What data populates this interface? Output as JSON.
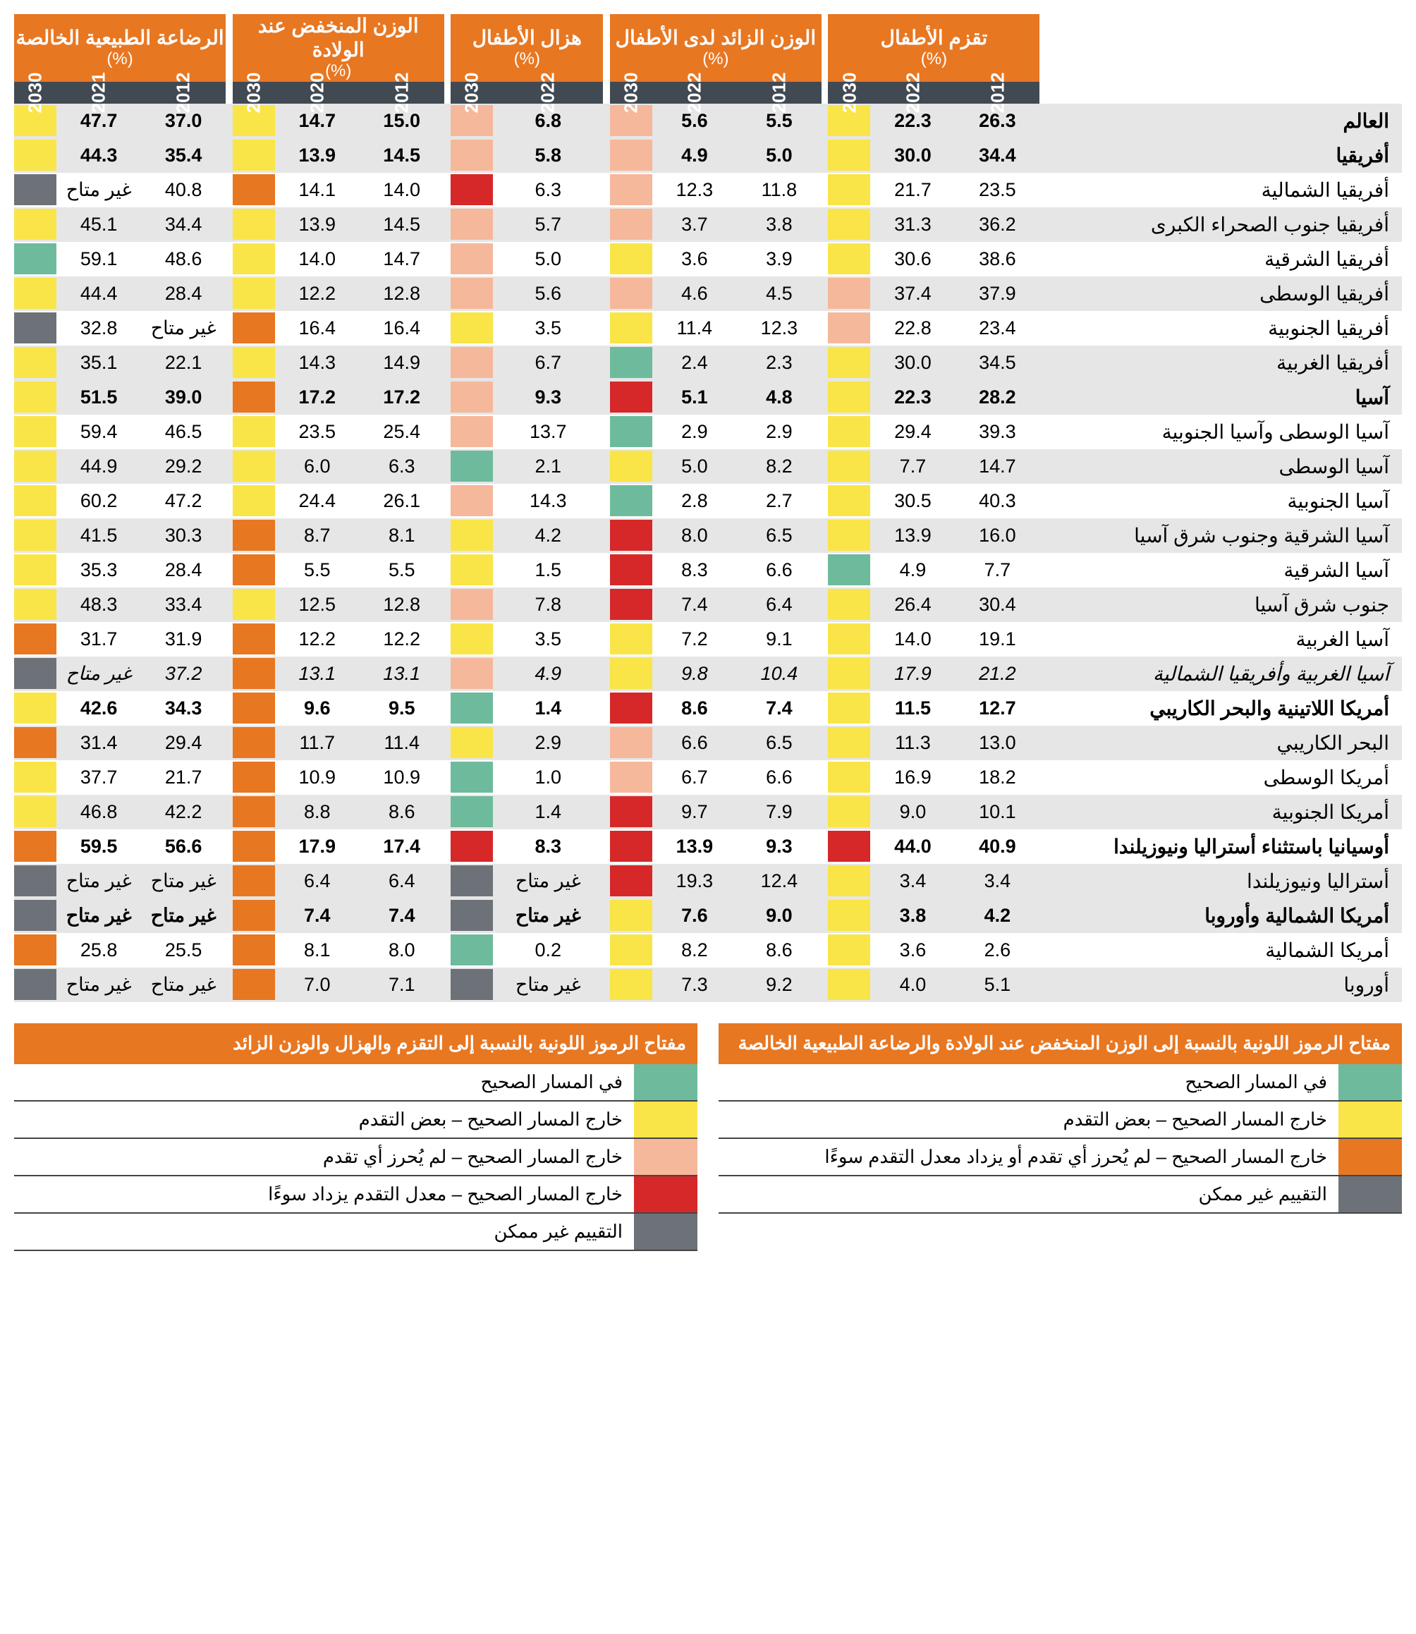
{
  "colors": {
    "orange": "#e87722",
    "darkgrey": "#414a53",
    "green": "#6dbb9c",
    "yellow": "#f9e547",
    "red": "#d62828",
    "pink": "#f5b89b",
    "grey": "#6d7278",
    "altrow": "#e6e6e6"
  },
  "na_text": "غير متاح",
  "groups": [
    {
      "title": "تقزم الأطفال",
      "pct": "(%)",
      "years": [
        "2012",
        "2022",
        "2030"
      ]
    },
    {
      "title": "الوزن الزائد لدى الأطفال",
      "pct": "(%)",
      "years": [
        "2012",
        "2022",
        "2030"
      ]
    },
    {
      "title": "هزال الأطفال",
      "pct": "(%)",
      "years": [
        "2012",
        "2022",
        "2030"
      ]
    },
    {
      "title": "الوزن المنخفض عند الولادة",
      "pct": "(%)",
      "years": [
        "2012",
        "2020",
        "2030"
      ]
    },
    {
      "title": "الرضاعة الطبيعية الخالصة",
      "pct": "(%)",
      "years": [
        "2012",
        "2021",
        "2030"
      ]
    }
  ],
  "rows": [
    {
      "name": "العالم",
      "bold": true,
      "alt": true,
      "stunting": {
        "v": [
          "26.3",
          "22.3"
        ],
        "c": "yellow"
      },
      "overweight": {
        "v": [
          "5.5",
          "5.6"
        ],
        "c": "pink"
      },
      "wasting": {
        "v": [
          "6.8"
        ],
        "c": "pink"
      },
      "lbw": {
        "v": [
          "15.0",
          "14.7"
        ],
        "c": "yellow"
      },
      "bf": {
        "v": [
          "37.0",
          "47.7"
        ],
        "c": "yellow"
      }
    },
    {
      "name": "أفريقيا",
      "bold": true,
      "alt": true,
      "stunting": {
        "v": [
          "34.4",
          "30.0"
        ],
        "c": "yellow"
      },
      "overweight": {
        "v": [
          "5.0",
          "4.9"
        ],
        "c": "pink"
      },
      "wasting": {
        "v": [
          "5.8"
        ],
        "c": "pink"
      },
      "lbw": {
        "v": [
          "14.5",
          "13.9"
        ],
        "c": "yellow"
      },
      "bf": {
        "v": [
          "35.4",
          "44.3"
        ],
        "c": "yellow"
      }
    },
    {
      "name": "أفريقيا الشمالية",
      "stunting": {
        "v": [
          "23.5",
          "21.7"
        ],
        "c": "yellow"
      },
      "overweight": {
        "v": [
          "11.8",
          "12.3"
        ],
        "c": "pink"
      },
      "wasting": {
        "v": [
          "6.3"
        ],
        "c": "red"
      },
      "lbw": {
        "v": [
          "14.0",
          "14.1"
        ],
        "c": "orange"
      },
      "bf": {
        "v": [
          "40.8",
          "غير متاح"
        ],
        "c": "grey"
      }
    },
    {
      "name": "أفريقيا جنوب الصحراء الكبرى",
      "alt": true,
      "stunting": {
        "v": [
          "36.2",
          "31.3"
        ],
        "c": "yellow"
      },
      "overweight": {
        "v": [
          "3.8",
          "3.7"
        ],
        "c": "pink"
      },
      "wasting": {
        "v": [
          "5.7"
        ],
        "c": "pink"
      },
      "lbw": {
        "v": [
          "14.5",
          "13.9"
        ],
        "c": "yellow"
      },
      "bf": {
        "v": [
          "34.4",
          "45.1"
        ],
        "c": "yellow"
      }
    },
    {
      "name": "أفريقيا الشرقية",
      "stunting": {
        "v": [
          "38.6",
          "30.6"
        ],
        "c": "yellow"
      },
      "overweight": {
        "v": [
          "3.9",
          "3.6"
        ],
        "c": "yellow"
      },
      "wasting": {
        "v": [
          "5.0"
        ],
        "c": "pink"
      },
      "lbw": {
        "v": [
          "14.7",
          "14.0"
        ],
        "c": "yellow"
      },
      "bf": {
        "v": [
          "48.6",
          "59.1"
        ],
        "c": "green"
      }
    },
    {
      "name": "أفريقيا الوسطى",
      "alt": true,
      "stunting": {
        "v": [
          "37.9",
          "37.4"
        ],
        "c": "pink"
      },
      "overweight": {
        "v": [
          "4.5",
          "4.6"
        ],
        "c": "pink"
      },
      "wasting": {
        "v": [
          "5.6"
        ],
        "c": "pink"
      },
      "lbw": {
        "v": [
          "12.8",
          "12.2"
        ],
        "c": "yellow"
      },
      "bf": {
        "v": [
          "28.4",
          "44.4"
        ],
        "c": "yellow"
      }
    },
    {
      "name": "أفريقيا الجنوبية",
      "stunting": {
        "v": [
          "23.4",
          "22.8"
        ],
        "c": "pink"
      },
      "overweight": {
        "v": [
          "12.3",
          "11.4"
        ],
        "c": "yellow"
      },
      "wasting": {
        "v": [
          "3.5"
        ],
        "c": "yellow"
      },
      "lbw": {
        "v": [
          "16.4",
          "16.4"
        ],
        "c": "orange"
      },
      "bf": {
        "v": [
          "غير متاح",
          "32.8"
        ],
        "c": "grey"
      }
    },
    {
      "name": "أفريقيا الغربية",
      "alt": true,
      "stunting": {
        "v": [
          "34.5",
          "30.0"
        ],
        "c": "yellow"
      },
      "overweight": {
        "v": [
          "2.3",
          "2.4"
        ],
        "c": "green"
      },
      "wasting": {
        "v": [
          "6.7"
        ],
        "c": "pink"
      },
      "lbw": {
        "v": [
          "14.9",
          "14.3"
        ],
        "c": "yellow"
      },
      "bf": {
        "v": [
          "22.1",
          "35.1"
        ],
        "c": "yellow"
      }
    },
    {
      "name": "آسيا",
      "bold": true,
      "alt": true,
      "stunting": {
        "v": [
          "28.2",
          "22.3"
        ],
        "c": "yellow"
      },
      "overweight": {
        "v": [
          "4.8",
          "5.1"
        ],
        "c": "red"
      },
      "wasting": {
        "v": [
          "9.3"
        ],
        "c": "pink"
      },
      "lbw": {
        "v": [
          "17.2",
          "17.2"
        ],
        "c": "orange"
      },
      "bf": {
        "v": [
          "39.0",
          "51.5"
        ],
        "c": "yellow"
      }
    },
    {
      "name": "آسيا الوسطى وآسيا الجنوبية",
      "stunting": {
        "v": [
          "39.3",
          "29.4"
        ],
        "c": "yellow"
      },
      "overweight": {
        "v": [
          "2.9",
          "2.9"
        ],
        "c": "green"
      },
      "wasting": {
        "v": [
          "13.7"
        ],
        "c": "pink"
      },
      "lbw": {
        "v": [
          "25.4",
          "23.5"
        ],
        "c": "yellow"
      },
      "bf": {
        "v": [
          "46.5",
          "59.4"
        ],
        "c": "yellow"
      }
    },
    {
      "name": "آسيا الوسطى",
      "alt": true,
      "stunting": {
        "v": [
          "14.7",
          "7.7"
        ],
        "c": "yellow"
      },
      "overweight": {
        "v": [
          "8.2",
          "5.0"
        ],
        "c": "yellow"
      },
      "wasting": {
        "v": [
          "2.1"
        ],
        "c": "green"
      },
      "lbw": {
        "v": [
          "6.3",
          "6.0"
        ],
        "c": "yellow"
      },
      "bf": {
        "v": [
          "29.2",
          "44.9"
        ],
        "c": "yellow"
      }
    },
    {
      "name": "آسيا الجنوبية",
      "stunting": {
        "v": [
          "40.3",
          "30.5"
        ],
        "c": "yellow"
      },
      "overweight": {
        "v": [
          "2.7",
          "2.8"
        ],
        "c": "green"
      },
      "wasting": {
        "v": [
          "14.3"
        ],
        "c": "pink"
      },
      "lbw": {
        "v": [
          "26.1",
          "24.4"
        ],
        "c": "yellow"
      },
      "bf": {
        "v": [
          "47.2",
          "60.2"
        ],
        "c": "yellow"
      }
    },
    {
      "name": "آسيا الشرقية وجنوب شرق آسيا",
      "alt": true,
      "stunting": {
        "v": [
          "16.0",
          "13.9"
        ],
        "c": "yellow"
      },
      "overweight": {
        "v": [
          "6.5",
          "8.0"
        ],
        "c": "red"
      },
      "wasting": {
        "v": [
          "4.2"
        ],
        "c": "yellow"
      },
      "lbw": {
        "v": [
          "8.1",
          "8.7"
        ],
        "c": "orange"
      },
      "bf": {
        "v": [
          "30.3",
          "41.5"
        ],
        "c": "yellow"
      }
    },
    {
      "name": "آسيا الشرقية",
      "stunting": {
        "v": [
          "7.7",
          "4.9"
        ],
        "c": "green"
      },
      "overweight": {
        "v": [
          "6.6",
          "8.3"
        ],
        "c": "red"
      },
      "wasting": {
        "v": [
          "1.5"
        ],
        "c": "yellow"
      },
      "lbw": {
        "v": [
          "5.5",
          "5.5"
        ],
        "c": "orange"
      },
      "bf": {
        "v": [
          "28.4",
          "35.3"
        ],
        "c": "yellow"
      }
    },
    {
      "name": "جنوب شرق آسيا",
      "alt": true,
      "stunting": {
        "v": [
          "30.4",
          "26.4"
        ],
        "c": "yellow"
      },
      "overweight": {
        "v": [
          "6.4",
          "7.4"
        ],
        "c": "red"
      },
      "wasting": {
        "v": [
          "7.8"
        ],
        "c": "pink"
      },
      "lbw": {
        "v": [
          "12.8",
          "12.5"
        ],
        "c": "yellow"
      },
      "bf": {
        "v": [
          "33.4",
          "48.3"
        ],
        "c": "yellow"
      }
    },
    {
      "name": "آسيا الغربية",
      "stunting": {
        "v": [
          "19.1",
          "14.0"
        ],
        "c": "yellow"
      },
      "overweight": {
        "v": [
          "9.1",
          "7.2"
        ],
        "c": "yellow"
      },
      "wasting": {
        "v": [
          "3.5"
        ],
        "c": "yellow"
      },
      "lbw": {
        "v": [
          "12.2",
          "12.2"
        ],
        "c": "orange"
      },
      "bf": {
        "v": [
          "31.9",
          "31.7"
        ],
        "c": "orange"
      }
    },
    {
      "name": "آسيا الغربية وأفريقيا الشمالية",
      "alt": true,
      "ital": true,
      "stunting": {
        "v": [
          "21.2",
          "17.9"
        ],
        "c": "yellow"
      },
      "overweight": {
        "v": [
          "10.4",
          "9.8"
        ],
        "c": "yellow"
      },
      "wasting": {
        "v": [
          "4.9"
        ],
        "c": "pink"
      },
      "lbw": {
        "v": [
          "13.1",
          "13.1"
        ],
        "c": "orange"
      },
      "bf": {
        "v": [
          "37.2",
          "غير متاح"
        ],
        "c": "grey"
      }
    },
    {
      "name": "أمريكا اللاتينية والبحر الكاريبي",
      "bold": true,
      "stunting": {
        "v": [
          "12.7",
          "11.5"
        ],
        "c": "yellow"
      },
      "overweight": {
        "v": [
          "7.4",
          "8.6"
        ],
        "c": "red"
      },
      "wasting": {
        "v": [
          "1.4"
        ],
        "c": "green"
      },
      "lbw": {
        "v": [
          "9.5",
          "9.6"
        ],
        "c": "orange"
      },
      "bf": {
        "v": [
          "34.3",
          "42.6"
        ],
        "c": "yellow"
      }
    },
    {
      "name": "البحر الكاريبي",
      "alt": true,
      "stunting": {
        "v": [
          "13.0",
          "11.3"
        ],
        "c": "yellow"
      },
      "overweight": {
        "v": [
          "6.5",
          "6.6"
        ],
        "c": "pink"
      },
      "wasting": {
        "v": [
          "2.9"
        ],
        "c": "yellow"
      },
      "lbw": {
        "v": [
          "11.4",
          "11.7"
        ],
        "c": "orange"
      },
      "bf": {
        "v": [
          "29.4",
          "31.4"
        ],
        "c": "orange"
      }
    },
    {
      "name": "أمريكا الوسطى",
      "stunting": {
        "v": [
          "18.2",
          "16.9"
        ],
        "c": "yellow"
      },
      "overweight": {
        "v": [
          "6.6",
          "6.7"
        ],
        "c": "pink"
      },
      "wasting": {
        "v": [
          "1.0"
        ],
        "c": "green"
      },
      "lbw": {
        "v": [
          "10.9",
          "10.9"
        ],
        "c": "orange"
      },
      "bf": {
        "v": [
          "21.7",
          "37.7"
        ],
        "c": "yellow"
      }
    },
    {
      "name": "أمريكا الجنوبية",
      "alt": true,
      "stunting": {
        "v": [
          "10.1",
          "9.0"
        ],
        "c": "yellow"
      },
      "overweight": {
        "v": [
          "7.9",
          "9.7"
        ],
        "c": "red"
      },
      "wasting": {
        "v": [
          "1.4"
        ],
        "c": "green"
      },
      "lbw": {
        "v": [
          "8.6",
          "8.8"
        ],
        "c": "orange"
      },
      "bf": {
        "v": [
          "42.2",
          "46.8"
        ],
        "c": "yellow"
      }
    },
    {
      "name": "أوسيانيا باستثناء أستراليا ونيوزيلندا",
      "bold": true,
      "stunting": {
        "v": [
          "40.9",
          "44.0"
        ],
        "c": "red"
      },
      "overweight": {
        "v": [
          "9.3",
          "13.9"
        ],
        "c": "red"
      },
      "wasting": {
        "v": [
          "8.3"
        ],
        "c": "red"
      },
      "lbw": {
        "v": [
          "17.4",
          "17.9"
        ],
        "c": "orange"
      },
      "bf": {
        "v": [
          "56.6",
          "59.5"
        ],
        "c": "orange"
      }
    },
    {
      "name": "أستراليا ونيوزيلندا",
      "alt": true,
      "stunting": {
        "v": [
          "3.4",
          "3.4"
        ],
        "c": "yellow"
      },
      "overweight": {
        "v": [
          "12.4",
          "19.3"
        ],
        "c": "red"
      },
      "wasting": {
        "v": [
          "غير متاح"
        ],
        "c": "grey"
      },
      "lbw": {
        "v": [
          "6.4",
          "6.4"
        ],
        "c": "orange"
      },
      "bf": {
        "v": [
          "غير متاح",
          "غير متاح"
        ],
        "c": "grey"
      }
    },
    {
      "name": "أمريكا الشمالية وأوروبا",
      "bold": true,
      "alt": true,
      "stunting": {
        "v": [
          "4.2",
          "3.8"
        ],
        "c": "yellow"
      },
      "overweight": {
        "v": [
          "9.0",
          "7.6"
        ],
        "c": "yellow"
      },
      "wasting": {
        "v": [
          "غير متاح"
        ],
        "c": "grey"
      },
      "lbw": {
        "v": [
          "7.4",
          "7.4"
        ],
        "c": "orange"
      },
      "bf": {
        "v": [
          "غير متاح",
          "غير متاح"
        ],
        "c": "grey"
      }
    },
    {
      "name": "أمريكا الشمالية",
      "stunting": {
        "v": [
          "2.6",
          "3.6"
        ],
        "c": "yellow"
      },
      "overweight": {
        "v": [
          "8.6",
          "8.2"
        ],
        "c": "yellow"
      },
      "wasting": {
        "v": [
          "0.2"
        ],
        "c": "green"
      },
      "lbw": {
        "v": [
          "8.0",
          "8.1"
        ],
        "c": "orange"
      },
      "bf": {
        "v": [
          "25.5",
          "25.8"
        ],
        "c": "orange"
      }
    },
    {
      "name": "أوروبا",
      "alt": true,
      "stunting": {
        "v": [
          "5.1",
          "4.0"
        ],
        "c": "yellow"
      },
      "overweight": {
        "v": [
          "9.2",
          "7.3"
        ],
        "c": "yellow"
      },
      "wasting": {
        "v": [
          "غير متاح"
        ],
        "c": "grey"
      },
      "lbw": {
        "v": [
          "7.1",
          "7.0"
        ],
        "c": "orange"
      },
      "bf": {
        "v": [
          "غير متاح",
          "غير متاح"
        ],
        "c": "grey"
      }
    }
  ],
  "legend1": {
    "title": "مفتاح الرموز اللونية بالنسبة إلى الوزن المنخفض عند الولادة والرضاعة الطبيعية الخالصة",
    "items": [
      {
        "c": "green",
        "t": "في المسار الصحيح"
      },
      {
        "c": "yellow",
        "t": "خارج المسار الصحيح – بعض التقدم"
      },
      {
        "c": "orange",
        "t": "خارج المسار الصحيح – لم يُحرز أي تقدم أو يزداد معدل التقدم سوءًا"
      },
      {
        "c": "grey",
        "t": "التقييم غير ممكن"
      }
    ]
  },
  "legend2": {
    "title": "مفتاح الرموز اللونية بالنسبة إلى التقزم والهزال والوزن الزائد",
    "items": [
      {
        "c": "green",
        "t": "في المسار الصحيح"
      },
      {
        "c": "yellow",
        "t": "خارج المسار الصحيح – بعض التقدم"
      },
      {
        "c": "pink",
        "t": "خارج المسار الصحيح – لم يُحرز أي تقدم"
      },
      {
        "c": "red",
        "t": "خارج المسار الصحيح – معدل التقدم يزداد سوءًا"
      },
      {
        "c": "grey",
        "t": "التقييم غير ممكن"
      }
    ]
  }
}
